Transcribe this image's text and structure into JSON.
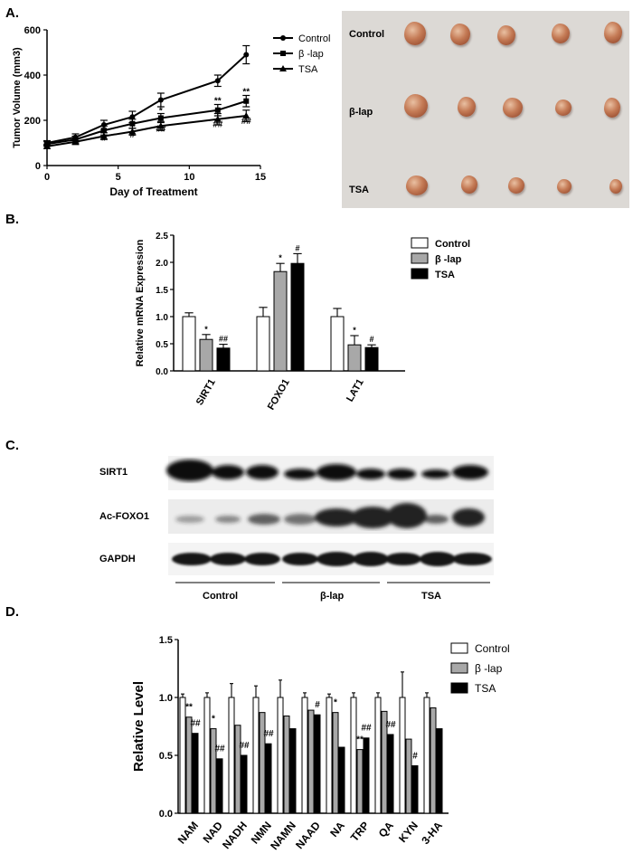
{
  "panels": {
    "a": "A.",
    "b": "B.",
    "c": "C.",
    "d": "D."
  },
  "colors": {
    "control": "#ffffff",
    "blap": "#a8a8a8",
    "tsa": "#000000"
  },
  "chart_data": [
    {
      "type": "line",
      "xlabel": "Day of Treatment",
      "ylabel": "Tumor Volume (mm3)",
      "xlim": [
        0,
        15
      ],
      "ylim": [
        0,
        600
      ],
      "xticks": [
        "0",
        "5",
        "10",
        "15"
      ],
      "yticks": [
        "0",
        "200",
        "400",
        "600"
      ],
      "legend": "right",
      "series": [
        {
          "name": "Control",
          "marker": "circle",
          "x": [
            0,
            2,
            4,
            6,
            8,
            12,
            14
          ],
          "y": [
            100,
            125,
            180,
            215,
            290,
            375,
            490
          ],
          "err": [
            10,
            15,
            20,
            25,
            30,
            25,
            40
          ]
        },
        {
          "name": "β -lap",
          "marker": "square",
          "x": [
            0,
            2,
            4,
            6,
            8,
            12,
            14
          ],
          "y": [
            95,
            115,
            155,
            185,
            210,
            245,
            285
          ],
          "err": [
            10,
            15,
            20,
            20,
            20,
            25,
            25
          ]
        },
        {
          "name": "TSA",
          "marker": "triangle",
          "x": [
            0,
            2,
            4,
            6,
            8,
            12,
            14
          ],
          "y": [
            85,
            105,
            130,
            150,
            175,
            205,
            220
          ],
          "err": [
            10,
            12,
            15,
            15,
            20,
            25,
            25
          ]
        }
      ],
      "annotations": [
        {
          "x": 8,
          "y": 230,
          "text": "*"
        },
        {
          "x": 12,
          "y": 275,
          "text": "**"
        },
        {
          "x": 14,
          "y": 315,
          "text": "**"
        },
        {
          "x": 4,
          "y": 110,
          "text": "#"
        },
        {
          "x": 6,
          "y": 125,
          "text": "#"
        },
        {
          "x": 8,
          "y": 150,
          "text": "##"
        },
        {
          "x": 12,
          "y": 170,
          "text": "##"
        },
        {
          "x": 14,
          "y": 185,
          "text": "##"
        }
      ]
    },
    {
      "type": "bar",
      "ylabel": "Relative mRNA Expression",
      "ylim": [
        0,
        2.5
      ],
      "yticks": [
        "0.0",
        "0.5",
        "1.0",
        "1.5",
        "2.0",
        "2.5"
      ],
      "categories": [
        "SIRT1",
        "FOXO1",
        "LAT1"
      ],
      "legend": "top-right",
      "series": [
        {
          "name": "Control",
          "values": [
            1.0,
            1.0,
            1.0
          ],
          "err": [
            0.07,
            0.17,
            0.15
          ]
        },
        {
          "name": "β -lap",
          "values": [
            0.58,
            1.83,
            0.48
          ],
          "err": [
            0.09,
            0.15,
            0.17
          ]
        },
        {
          "name": "TSA",
          "values": [
            0.42,
            1.98,
            0.43
          ],
          "err": [
            0.07,
            0.18,
            0.05
          ]
        }
      ],
      "annotations": [
        {
          "series": 1,
          "category": 0,
          "text": "*"
        },
        {
          "series": 2,
          "category": 0,
          "text": "##"
        },
        {
          "series": 1,
          "category": 1,
          "text": "*"
        },
        {
          "series": 2,
          "category": 1,
          "text": "#"
        },
        {
          "series": 1,
          "category": 2,
          "text": "*"
        },
        {
          "series": 2,
          "category": 2,
          "text": "#"
        }
      ]
    },
    {
      "type": "bar",
      "ylabel": "Relative Level",
      "ylim": [
        0,
        1.5
      ],
      "yticks": [
        "0.0",
        "0.5",
        "1.0",
        "1.5"
      ],
      "categories": [
        "NAM",
        "NAD",
        "NADH",
        "NMN",
        "NAMN",
        "NAAD",
        "NA",
        "TRP",
        "QA",
        "KYN",
        "3-HA"
      ],
      "legend": "top-right",
      "series": [
        {
          "name": "Control",
          "values": [
            1.0,
            1.0,
            1.0,
            1.0,
            1.0,
            1.0,
            1.0,
            1.0,
            1.0,
            1.0,
            1.0
          ],
          "err": [
            0.03,
            0.04,
            0.12,
            0.1,
            0.15,
            0.04,
            0.03,
            0.04,
            0.04,
            0.22,
            0.04
          ]
        },
        {
          "name": "β -lap",
          "values": [
            0.83,
            0.73,
            0.76,
            0.87,
            0.84,
            0.89,
            0.87,
            0.55,
            0.88,
            0.64,
            0.91
          ]
        },
        {
          "name": "TSA",
          "values": [
            0.69,
            0.47,
            0.5,
            0.6,
            0.73,
            0.85,
            0.57,
            0.65,
            0.68,
            0.41,
            0.73
          ]
        }
      ],
      "annotations": [
        {
          "series": 1,
          "category": 0,
          "text": "**"
        },
        {
          "series": 2,
          "category": 0,
          "text": "##"
        },
        {
          "series": 1,
          "category": 1,
          "text": "*"
        },
        {
          "series": 2,
          "category": 1,
          "text": "##"
        },
        {
          "series": 2,
          "category": 2,
          "text": "##"
        },
        {
          "series": 2,
          "category": 3,
          "text": "##"
        },
        {
          "series": 2,
          "category": 5,
          "text": "#"
        },
        {
          "series": 1,
          "category": 6,
          "text": "*"
        },
        {
          "series": 1,
          "category": 7,
          "text": "**"
        },
        {
          "series": 2,
          "category": 7,
          "text": "##"
        },
        {
          "series": 2,
          "category": 8,
          "text": "##"
        },
        {
          "series": 2,
          "category": 9,
          "text": "#"
        }
      ]
    }
  ],
  "photo": {
    "rows": [
      "Control",
      "β-lap",
      "TSA"
    ]
  },
  "blot": {
    "rows": [
      "SIRT1",
      "Ac-FOXO1",
      "GAPDH"
    ],
    "groups": [
      "Control",
      "β-lap",
      "TSA"
    ]
  }
}
